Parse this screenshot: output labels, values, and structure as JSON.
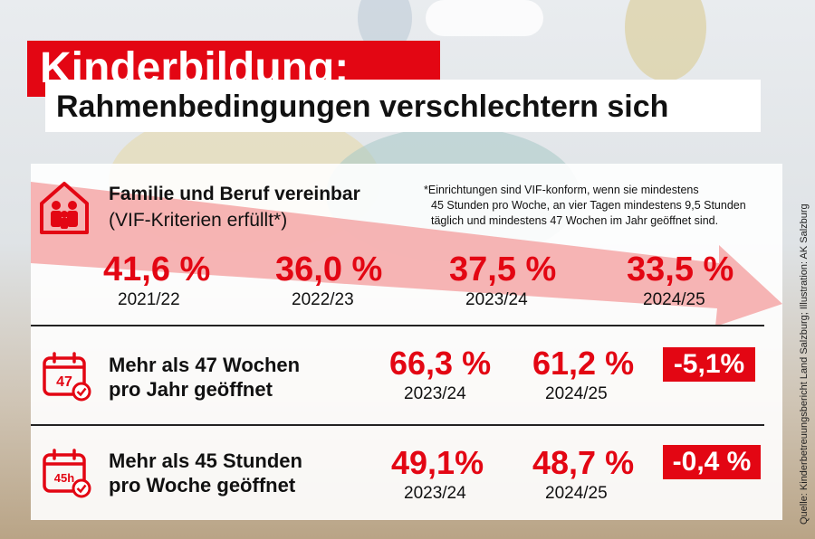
{
  "title": "Kinderbildung:",
  "subtitle": "Rahmenbedingungen verschlechtern sich",
  "section1": {
    "heading": "Familie und Beruf vereinbar",
    "subheading": "(VIF-Kriterien erfüllt*)",
    "footnote_line1": "*Einrichtungen sind VIF-konform, wenn sie mindestens",
    "footnote_line2": "45 Stunden pro Woche, an vier Tagen mindestens 9,5 Stunden",
    "footnote_line3": "täglich und mindestens 47 Wochen im Jahr geöffnet sind.",
    "icon": "family-house-icon",
    "values": [
      {
        "value": "41,6 %",
        "year": "2021/22"
      },
      {
        "value": "36,0 %",
        "year": "2022/23"
      },
      {
        "value": "37,5 %",
        "year": "2023/24"
      },
      {
        "value": "33,5 %",
        "year": "2024/25"
      }
    ]
  },
  "section2": {
    "line1": "Mehr als 47 Wochen",
    "line2": "pro Jahr geöffnet",
    "icon_text": "47",
    "icon": "calendar-check-icon",
    "value1": "66,3 %",
    "year1": "2023/24",
    "value2": "61,2 %",
    "year2": "2024/25",
    "change": "-5,1%"
  },
  "section3": {
    "line1": "Mehr als 45 Stunden",
    "line2": "pro Woche geöffnet",
    "icon_text": "45h",
    "icon": "calendar-check-icon",
    "value1": "49,1%",
    "year1": "2023/24",
    "value2": "48,7 %",
    "year2": "2024/25",
    "change": "-0,4 %"
  },
  "credit": "Quelle: Kinderbetreuungsbericht Land Salzburg; Illustration: AK Salzburg",
  "colors": {
    "accent": "#e30613",
    "arrow": "#f4a7a7"
  }
}
